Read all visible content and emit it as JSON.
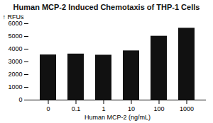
{
  "chart_data": {
    "type": "bar",
    "title": "Human MCP-2 Induced Chemotaxis of THP-1 Cells",
    "xlabel": "Human MCP-2 (ng/mL)",
    "ylabel": "RFUs",
    "categories": [
      "0",
      "0.1",
      "1",
      "10",
      "100",
      "1000"
    ],
    "values": [
      3550,
      3620,
      3530,
      3870,
      5020,
      5650
    ],
    "color": "#111111",
    "ylim": [
      0,
      6000
    ],
    "yticks": [
      0,
      1000,
      2000,
      3000,
      4000,
      5000,
      6000
    ],
    "grid": false
  }
}
